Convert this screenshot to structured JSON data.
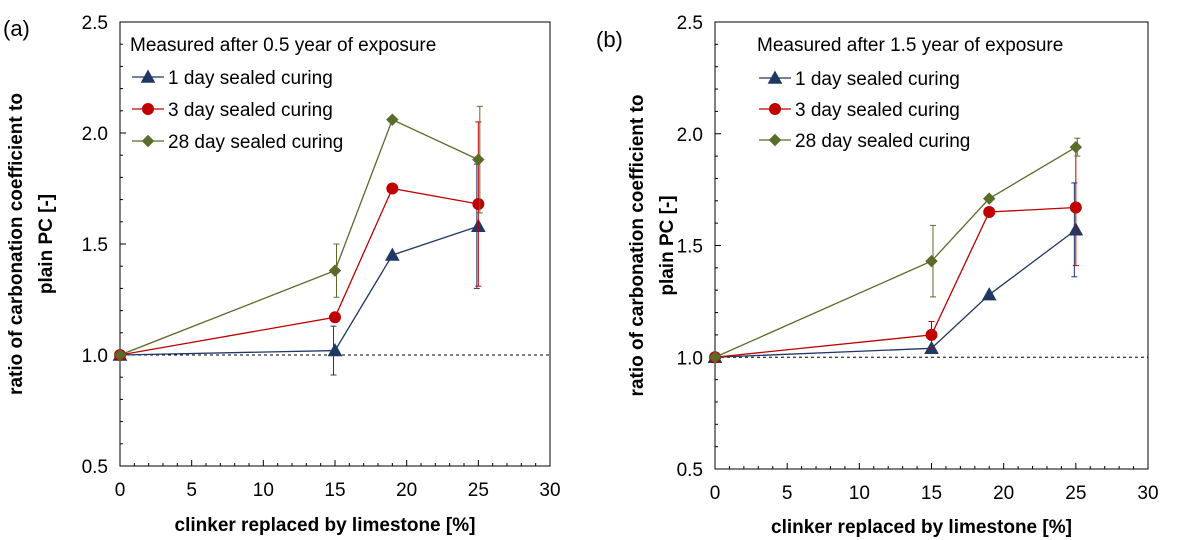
{
  "chart_data": [
    {
      "type": "line",
      "panel_label": "(a)",
      "title": "Measured after 0.5 year of exposure",
      "xlabel": "clinker replaced by limestone [%]",
      "ylabel_line1": "ratio of carbonation coefficient to",
      "ylabel_line2": "plain PC [-]",
      "xlim": [
        0,
        30
      ],
      "ylim": [
        0.5,
        2.5
      ],
      "xticks": [
        "0",
        "5",
        "10",
        "15",
        "20",
        "25",
        "30"
      ],
      "yticks": [
        "0.5",
        "1.0",
        "1.5",
        "2.0",
        "2.5"
      ],
      "reference_line": 1.0,
      "legend_position": "top-left",
      "series": [
        {
          "name": "1 day sealed curing",
          "color": "#1f3864",
          "marker": "triangle",
          "x": [
            0,
            15,
            19,
            25
          ],
          "y": [
            1.0,
            1.02,
            1.45,
            1.58
          ],
          "err": [
            [
              0,
              0
            ],
            [
              0.11,
              0.11
            ],
            [
              0,
              0
            ],
            [
              0.28,
              0.28
            ]
          ]
        },
        {
          "name": "3 day sealed curing",
          "color": "#c00000",
          "marker": "circle",
          "x": [
            0,
            15,
            19,
            25
          ],
          "y": [
            1.0,
            1.17,
            1.75,
            1.68
          ],
          "err": [
            [
              0,
              0
            ],
            [
              0,
              0
            ],
            [
              0,
              0
            ],
            [
              0.37,
              0.37
            ]
          ]
        },
        {
          "name": "28 day sealed curing",
          "color": "#5b6b2a",
          "marker": "diamond",
          "x": [
            0,
            15,
            19,
            25
          ],
          "y": [
            1.0,
            1.38,
            2.06,
            1.88
          ],
          "err": [
            [
              0,
              0
            ],
            [
              0.12,
              0.12
            ],
            [
              0,
              0
            ],
            [
              0.24,
              0.24
            ]
          ]
        }
      ]
    },
    {
      "type": "line",
      "panel_label": "(b)",
      "title": "Measured after 1.5 year of exposure",
      "xlabel": "clinker replaced by limestone [%]",
      "ylabel_line1": "ratio of carbonation coefficient to",
      "ylabel_line2": "plain PC [-]",
      "xlim": [
        0,
        30
      ],
      "ylim": [
        0.5,
        2.5
      ],
      "xticks": [
        "0",
        "5",
        "10",
        "15",
        "20",
        "25",
        "30"
      ],
      "yticks": [
        "0.5",
        "1.0",
        "1.5",
        "2.0",
        "2.5"
      ],
      "reference_line": 1.0,
      "legend_position": "top-left",
      "series": [
        {
          "name": "1 day sealed curing",
          "color": "#1f3864",
          "marker": "triangle",
          "x": [
            0,
            15,
            19,
            25
          ],
          "y": [
            1.0,
            1.04,
            1.28,
            1.57
          ],
          "err": [
            [
              0,
              0
            ],
            [
              0,
              0
            ],
            [
              0,
              0
            ],
            [
              0.21,
              0.21
            ]
          ]
        },
        {
          "name": "3 day sealed curing",
          "color": "#c00000",
          "marker": "circle",
          "x": [
            0,
            15,
            19,
            25
          ],
          "y": [
            1.0,
            1.1,
            1.65,
            1.67
          ],
          "err": [
            [
              0,
              0
            ],
            [
              0.06,
              0.06
            ],
            [
              0,
              0
            ],
            [
              0.26,
              0.26
            ]
          ]
        },
        {
          "name": "28 day sealed curing",
          "color": "#5b6b2a",
          "marker": "diamond",
          "x": [
            0,
            15,
            19,
            25
          ],
          "y": [
            1.0,
            1.43,
            1.71,
            1.94
          ],
          "err": [
            [
              0,
              0
            ],
            [
              0.16,
              0.16
            ],
            [
              0,
              0
            ],
            [
              0.04,
              0.04
            ]
          ]
        }
      ]
    }
  ]
}
